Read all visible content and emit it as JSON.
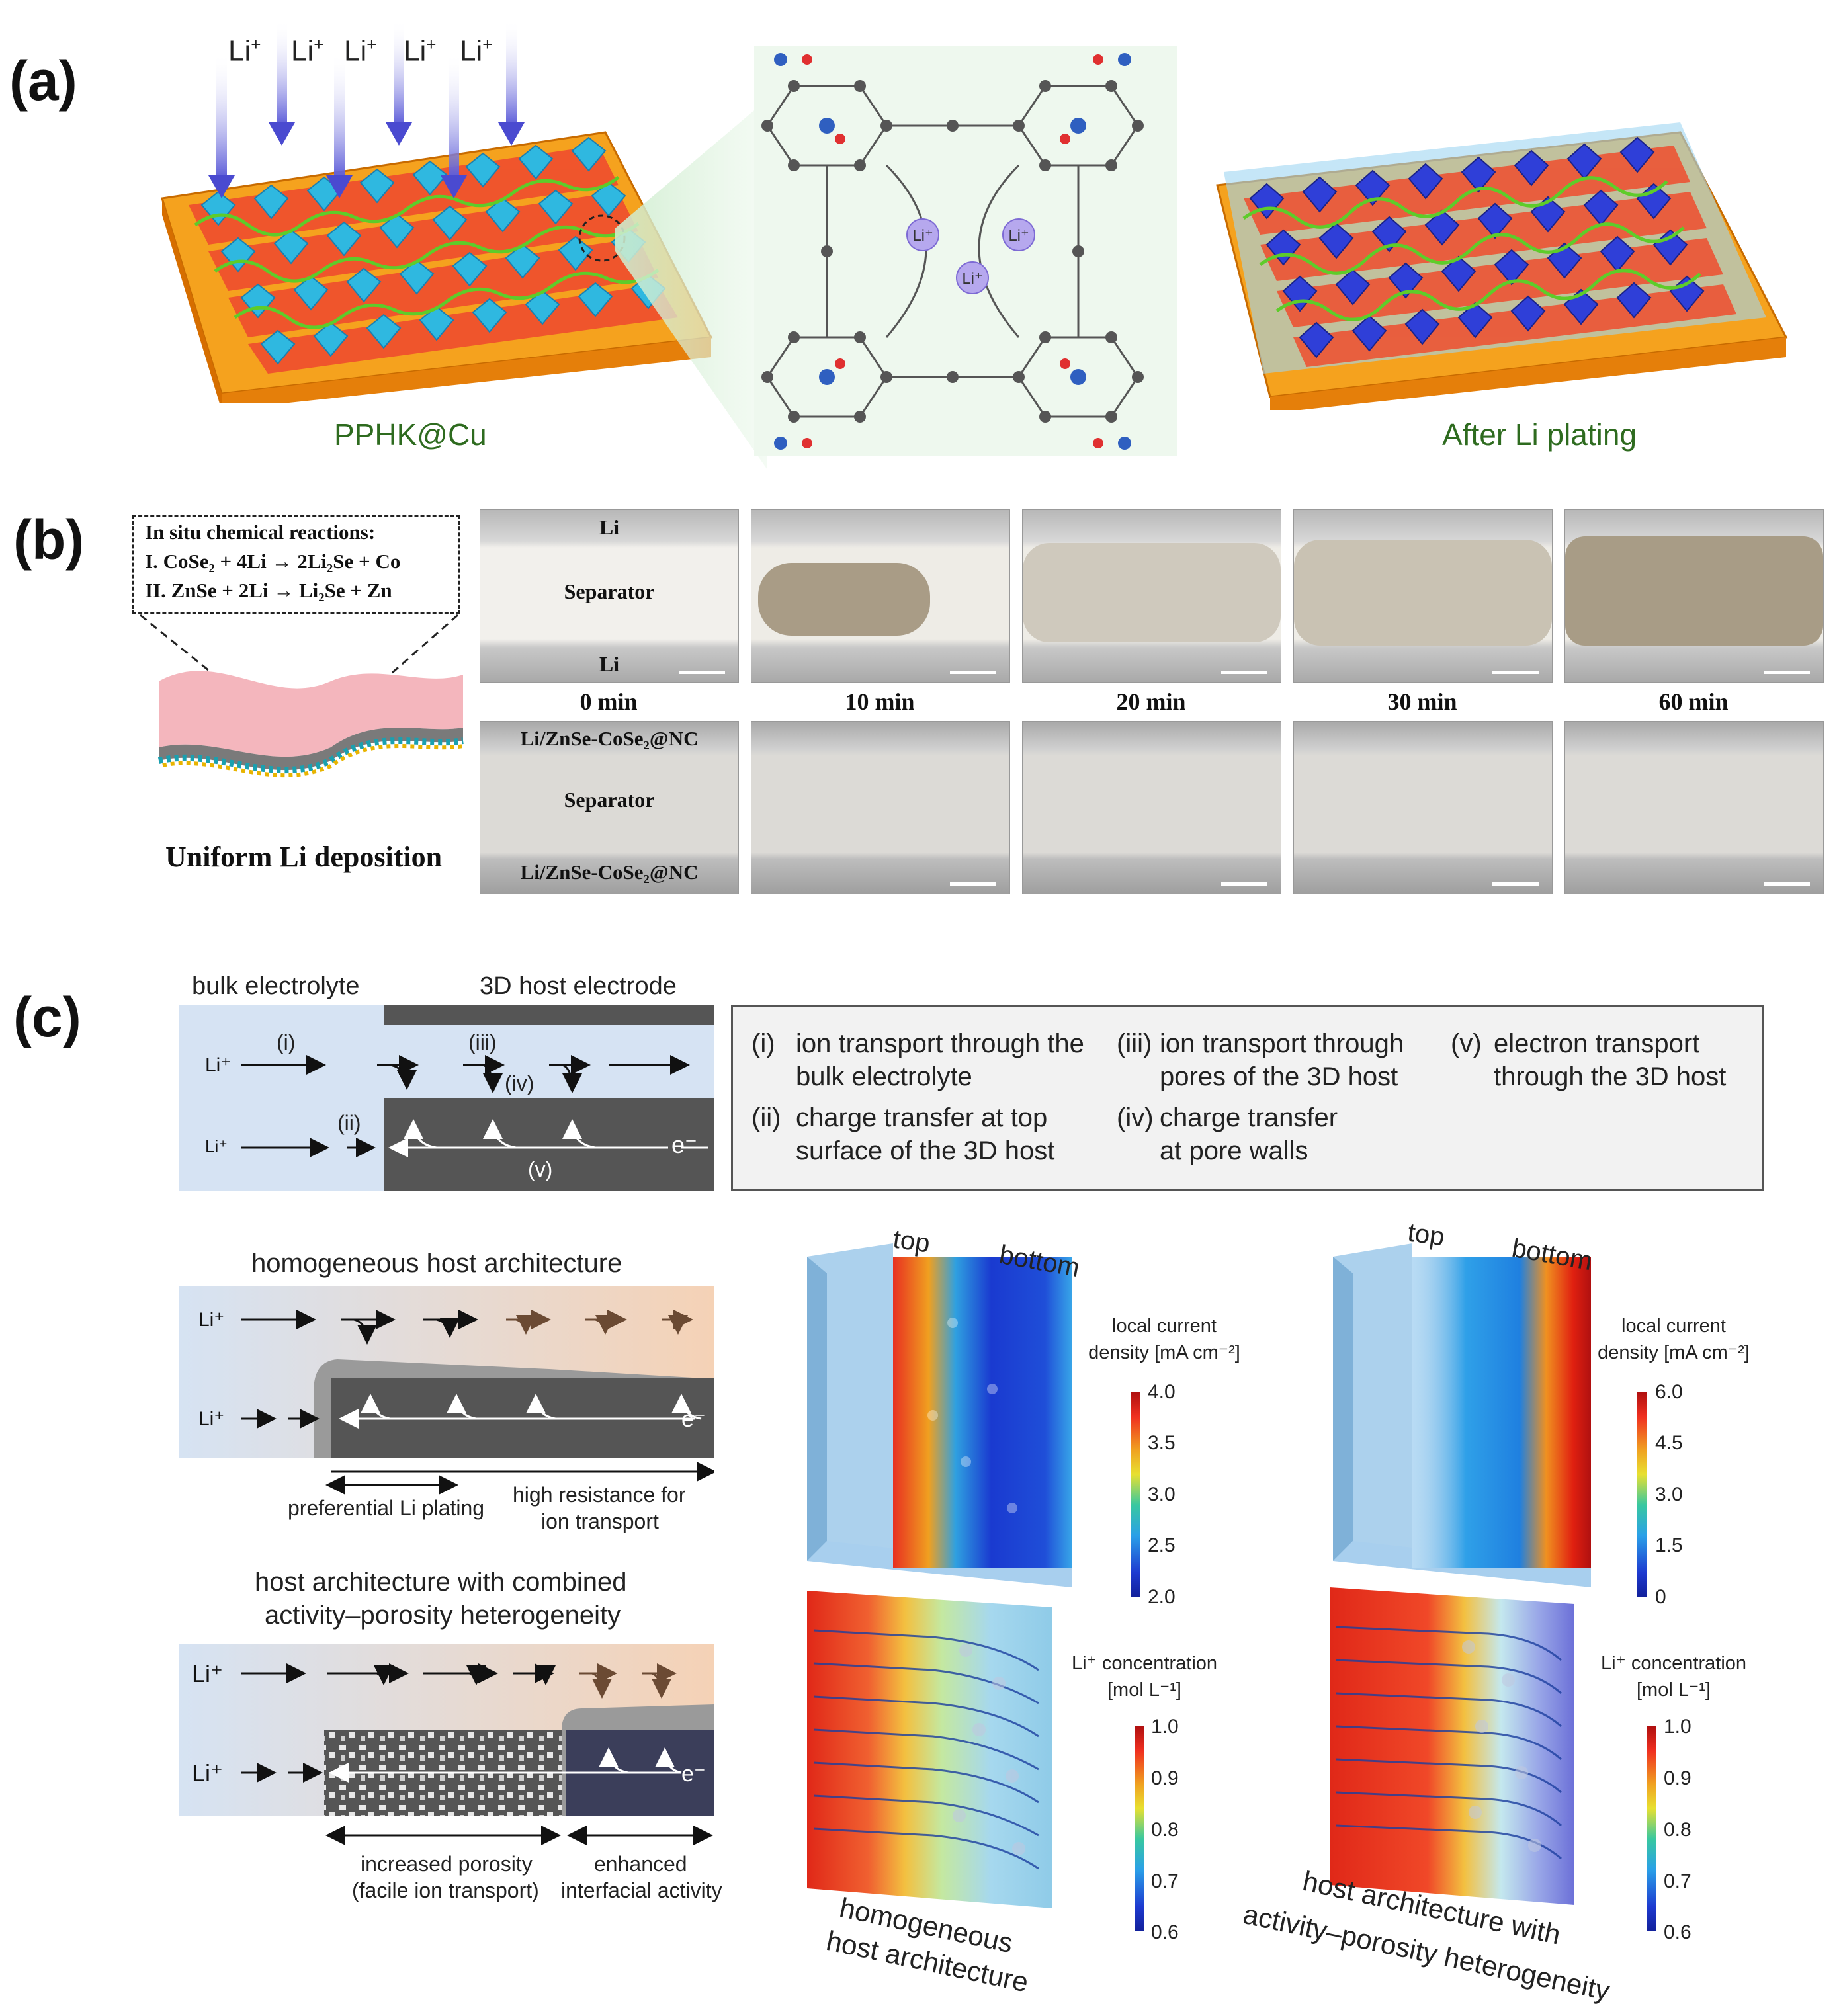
{
  "panel_a": {
    "label": "(a)",
    "li_ion": "Li",
    "li_sup": "+",
    "arrow_count": 6,
    "left_caption": "PPHK@Cu",
    "right_caption": "After Li plating",
    "colors": {
      "substrate": "#f5920f",
      "octahedra": "#2fb8e0",
      "plated": "#2f3fd8",
      "chain": "#5ecc2a",
      "red_layer": "#ef4d2e",
      "arrow": "#5a5ad8"
    }
  },
  "panel_b": {
    "label": "(b)",
    "reactions_title": "In situ chemical reactions:",
    "reaction_1": "I. CoSe₂ + 4Li → 2Li₂Se + Co",
    "reaction_2": "II. ZnSe + 2Li → Li₂Se + Zn",
    "deposition_caption": "Uniform Li deposition",
    "top_labels": {
      "top": "Li",
      "middle": "Separator",
      "bottom": "Li"
    },
    "bottom_labels": {
      "top": "Li/ZnSe-CoSe₂@NC",
      "middle": "Separator",
      "bottom": "Li/ZnSe-CoSe₂@NC"
    },
    "times": [
      "0 min",
      "10 min",
      "20 min",
      "30 min",
      "60 min"
    ]
  },
  "panel_c": {
    "label": "(c)",
    "schematic": {
      "bulk_label": "bulk electrolyte",
      "host_label": "3D host electrode",
      "li": "Li",
      "sup": "+",
      "i": "(i)",
      "ii": "(ii)",
      "iii": "(iii)",
      "iv": "(iv)",
      "v": "(v)",
      "e": "e⁻"
    },
    "legend": {
      "i_num": "(i)",
      "i_l1": "ion transport through the",
      "i_l2": "bulk electrolyte",
      "ii_num": "(ii)",
      "ii_l1": "charge transfer at top",
      "ii_l2": "surface of the 3D host",
      "iii_num": "(iii)",
      "iii_l1": "ion transport through",
      "iii_l2": "pores of the 3D host",
      "iv_num": "(iv)",
      "iv_l1": "charge transfer",
      "iv_l2": "at pore walls",
      "v_num": "(v)",
      "v_l1": "electron transport",
      "v_l2": "through the 3D host"
    },
    "homogeneous": {
      "title": "homogeneous host architecture",
      "left_note": "preferential Li plating",
      "right_note_l1": "high resistance for",
      "right_note_l2": "ion transport"
    },
    "heterogeneous": {
      "title_l1": "host architecture with combined",
      "title_l2": "activity–porosity heterogeneity",
      "left_note_l1": "increased porosity",
      "left_note_l2": "(facile ion transport)",
      "right_note_l1": "enhanced",
      "right_note_l2": "interfacial activity"
    },
    "sim_left": {
      "top": "top",
      "bottom": "bottom",
      "cd_title_l1": "local current",
      "cd_title_l2": "density [mA cm⁻²]",
      "cd_ticks": [
        "4.0",
        "3.5",
        "3.0",
        "2.5",
        "2.0"
      ],
      "conc_title_l1": "Li⁺ concentration",
      "conc_title_l2": "[mol L⁻¹]",
      "conc_ticks": [
        "1.0",
        "0.9",
        "0.8",
        "0.7",
        "0.6"
      ],
      "caption_l1": "homogeneous",
      "caption_l2": "host architecture"
    },
    "sim_right": {
      "top": "top",
      "bottom": "bottom",
      "cd_title_l1": "local current",
      "cd_title_l2": "density [mA cm⁻²]",
      "cd_ticks": [
        "6.0",
        "4.5",
        "3.0",
        "1.5",
        "0"
      ],
      "conc_title_l1": "Li⁺ concentration",
      "conc_title_l2": "[mol L⁻¹]",
      "conc_ticks": [
        "1.0",
        "0.9",
        "0.8",
        "0.7",
        "0.6"
      ],
      "caption_l1": "host architecture with",
      "caption_l2": "activity–porosity heterogeneity"
    }
  }
}
